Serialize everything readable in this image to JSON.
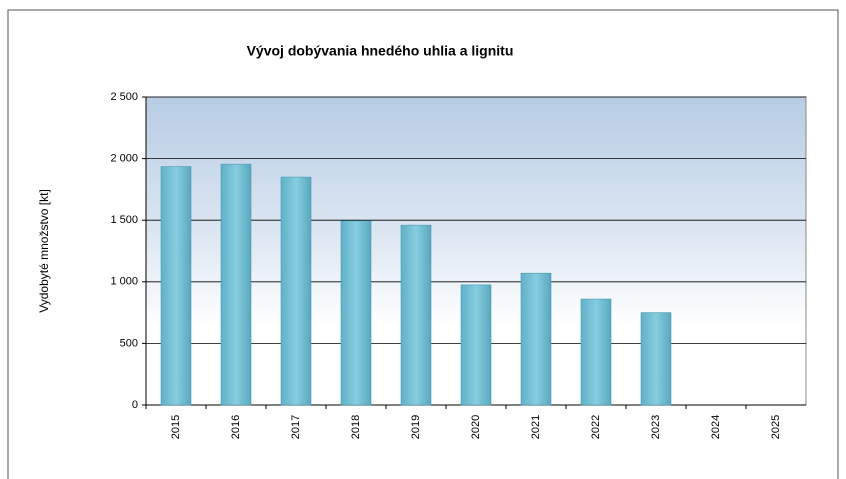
{
  "chart_data": {
    "type": "bar",
    "title": "Vývoj dobývania hnedého uhlia a lignitu",
    "y_label": "Vydobyté množstvo [kt]",
    "categories": [
      "2015",
      "2016",
      "2017",
      "2018",
      "2019",
      "2020",
      "2021",
      "2022",
      "2023",
      "2024",
      "2025"
    ],
    "values": [
      1935,
      1955,
      1850,
      1495,
      1460,
      975,
      1070,
      860,
      750,
      null,
      null
    ],
    "color": "#72c1d6",
    "ylim": [
      0,
      2500
    ],
    "yticks": [
      0,
      500,
      {
        "value": 1000,
        "label": "1 000"
      },
      {
        "value": 1500,
        "label": "1 500"
      },
      {
        "value": 2000,
        "label": "2 000"
      },
      {
        "value": 2500,
        "label": "2 500"
      }
    ],
    "grid": true
  }
}
